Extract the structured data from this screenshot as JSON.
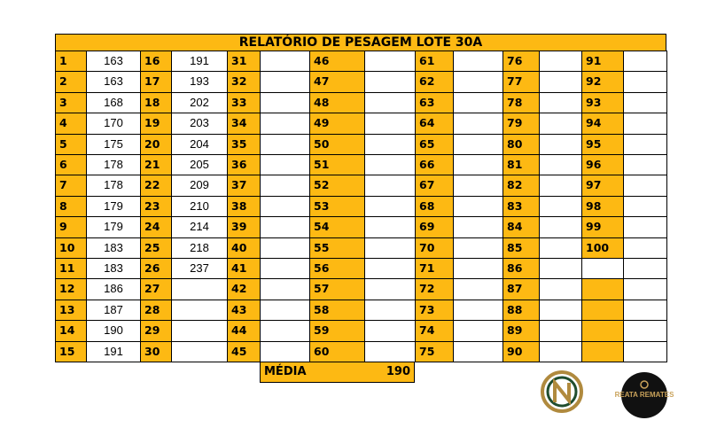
{
  "table": {
    "title": "RELATÓRIO DE PESAGEM LOTE 30A",
    "rows": [
      [
        [
          1,
          163
        ],
        [
          16,
          191
        ],
        [
          31,
          null
        ],
        [
          46,
          null
        ],
        [
          61,
          null
        ],
        [
          76,
          null
        ],
        [
          91,
          null
        ]
      ],
      [
        [
          2,
          163
        ],
        [
          17,
          193
        ],
        [
          32,
          null
        ],
        [
          47,
          null
        ],
        [
          62,
          null
        ],
        [
          77,
          null
        ],
        [
          92,
          null
        ]
      ],
      [
        [
          3,
          168
        ],
        [
          18,
          202
        ],
        [
          33,
          null
        ],
        [
          48,
          null
        ],
        [
          63,
          null
        ],
        [
          78,
          null
        ],
        [
          93,
          null
        ]
      ],
      [
        [
          4,
          170
        ],
        [
          19,
          203
        ],
        [
          34,
          null
        ],
        [
          49,
          null
        ],
        [
          64,
          null
        ],
        [
          79,
          null
        ],
        [
          94,
          null
        ]
      ],
      [
        [
          5,
          175
        ],
        [
          20,
          204
        ],
        [
          35,
          null
        ],
        [
          50,
          null
        ],
        [
          65,
          null
        ],
        [
          80,
          null
        ],
        [
          95,
          null
        ]
      ],
      [
        [
          6,
          178
        ],
        [
          21,
          205
        ],
        [
          36,
          null
        ],
        [
          51,
          null
        ],
        [
          66,
          null
        ],
        [
          81,
          null
        ],
        [
          96,
          null
        ]
      ],
      [
        [
          7,
          178
        ],
        [
          22,
          209
        ],
        [
          37,
          null
        ],
        [
          52,
          null
        ],
        [
          67,
          null
        ],
        [
          82,
          null
        ],
        [
          97,
          null
        ]
      ],
      [
        [
          8,
          179
        ],
        [
          23,
          210
        ],
        [
          38,
          null
        ],
        [
          53,
          null
        ],
        [
          68,
          null
        ],
        [
          83,
          null
        ],
        [
          98,
          null
        ]
      ],
      [
        [
          9,
          179
        ],
        [
          24,
          214
        ],
        [
          39,
          null
        ],
        [
          54,
          null
        ],
        [
          69,
          null
        ],
        [
          84,
          null
        ],
        [
          99,
          null
        ]
      ],
      [
        [
          10,
          183
        ],
        [
          25,
          218
        ],
        [
          40,
          null
        ],
        [
          55,
          null
        ],
        [
          70,
          null
        ],
        [
          85,
          null
        ],
        [
          100,
          null
        ]
      ],
      [
        [
          11,
          183
        ],
        [
          26,
          237
        ],
        [
          41,
          null
        ],
        [
          56,
          null
        ],
        [
          71,
          null
        ],
        [
          86,
          null
        ],
        [
          null,
          null
        ]
      ],
      [
        [
          12,
          186
        ],
        [
          27,
          null
        ],
        [
          42,
          null
        ],
        [
          57,
          null
        ],
        [
          72,
          null
        ],
        [
          87,
          null
        ],
        [
          null,
          null
        ]
      ],
      [
        [
          13,
          187
        ],
        [
          28,
          null
        ],
        [
          43,
          null
        ],
        [
          58,
          null
        ],
        [
          73,
          null
        ],
        [
          88,
          null
        ],
        [
          null,
          null
        ]
      ],
      [
        [
          14,
          190
        ],
        [
          29,
          null
        ],
        [
          44,
          null
        ],
        [
          59,
          null
        ],
        [
          74,
          null
        ],
        [
          89,
          null
        ],
        [
          null,
          null
        ]
      ],
      [
        [
          15,
          191
        ],
        [
          30,
          null
        ],
        [
          45,
          null
        ],
        [
          60,
          null
        ],
        [
          75,
          null
        ],
        [
          90,
          null
        ],
        [
          null,
          null
        ]
      ]
    ],
    "average": {
      "label": "MÉDIA",
      "value": 190
    }
  },
  "logos": {
    "right": "REATA REMATES"
  }
}
